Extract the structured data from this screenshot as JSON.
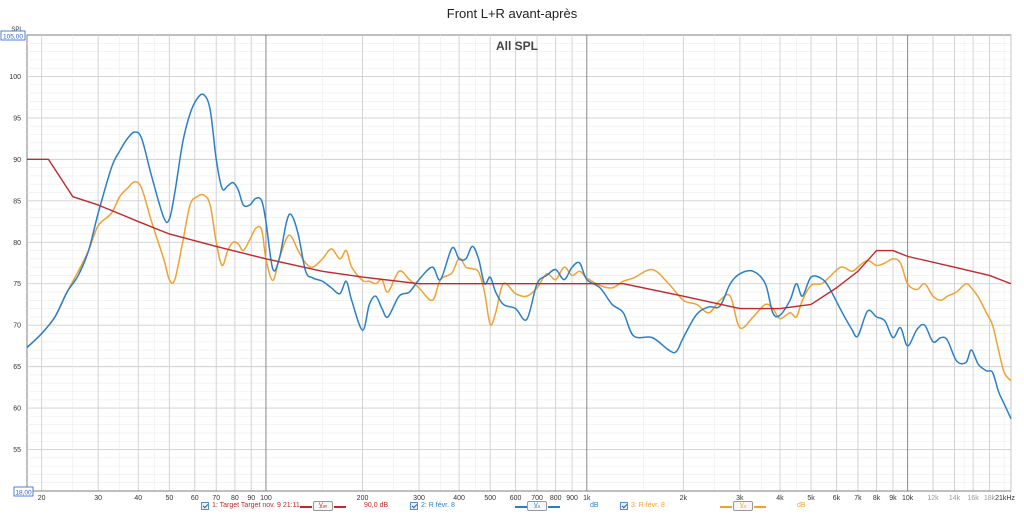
{
  "title": "Front L+R avant-après",
  "ylabel": "SPL",
  "chart_data": {
    "type": "line",
    "title": "Front L+R avant-après",
    "annotation": "All SPL",
    "ylabel": "SPL",
    "xscale": "log",
    "xlim": [
      18,
      21000
    ],
    "ylim": [
      50,
      105
    ],
    "ymin_label": "18,00",
    "ymax_label": "105,00",
    "grid": true,
    "y_ticks": [
      55,
      60,
      65,
      70,
      75,
      80,
      85,
      90,
      95,
      100
    ],
    "x_ticks": [
      {
        "v": 20,
        "label": "20",
        "major": false
      },
      {
        "v": 30,
        "label": "30",
        "major": false
      },
      {
        "v": 40,
        "label": "40",
        "major": false
      },
      {
        "v": 50,
        "label": "50",
        "major": false
      },
      {
        "v": 60,
        "label": "60",
        "major": false
      },
      {
        "v": 70,
        "label": "70",
        "major": false
      },
      {
        "v": 80,
        "label": "80",
        "major": false
      },
      {
        "v": 90,
        "label": "90",
        "major": false
      },
      {
        "v": 100,
        "label": "100",
        "major": true
      },
      {
        "v": 200,
        "label": "200",
        "major": false
      },
      {
        "v": 300,
        "label": "300",
        "major": false
      },
      {
        "v": 400,
        "label": "400",
        "major": false
      },
      {
        "v": 500,
        "label": "500",
        "major": false
      },
      {
        "v": 600,
        "label": "600",
        "major": false
      },
      {
        "v": 700,
        "label": "700",
        "major": false
      },
      {
        "v": 800,
        "label": "800",
        "major": false
      },
      {
        "v": 900,
        "label": "900",
        "major": false
      },
      {
        "v": 1000,
        "label": "1k",
        "major": true
      },
      {
        "v": 2000,
        "label": "2k",
        "major": false
      },
      {
        "v": 3000,
        "label": "3k",
        "major": false
      },
      {
        "v": 4000,
        "label": "4k",
        "major": false
      },
      {
        "v": 5000,
        "label": "5k",
        "major": false
      },
      {
        "v": 6000,
        "label": "6k",
        "major": false
      },
      {
        "v": 7000,
        "label": "7k",
        "major": false
      },
      {
        "v": 8000,
        "label": "8k",
        "major": false
      },
      {
        "v": 9000,
        "label": "9k",
        "major": false
      },
      {
        "v": 10000,
        "label": "10k",
        "major": true
      },
      {
        "v": 12000,
        "label": "12k",
        "major": false,
        "light": true
      },
      {
        "v": 14000,
        "label": "14k",
        "major": false,
        "light": true
      },
      {
        "v": 16000,
        "label": "16k",
        "major": false,
        "light": true
      },
      {
        "v": 18000,
        "label": "18k",
        "major": false,
        "light": true
      },
      {
        "v": 21000,
        "label": "21kHz",
        "major": false
      }
    ],
    "series": [
      {
        "legend": "1: Target Target nov. 9 21:11",
        "button": "V̲ₐᵥ",
        "value": "90,0 dB",
        "color": "#c0282b",
        "points": [
          [
            18,
            90
          ],
          [
            21,
            90
          ],
          [
            25,
            85.5
          ],
          [
            30,
            84.5
          ],
          [
            40,
            82.5
          ],
          [
            50,
            81
          ],
          [
            70,
            79.5
          ],
          [
            100,
            78
          ],
          [
            150,
            76.5
          ],
          [
            200,
            75.8
          ],
          [
            300,
            75
          ],
          [
            400,
            75
          ],
          [
            1000,
            75
          ],
          [
            1300,
            75
          ],
          [
            2000,
            73.5
          ],
          [
            3000,
            72
          ],
          [
            4000,
            72
          ],
          [
            5000,
            72.5
          ],
          [
            6000,
            74.5
          ],
          [
            7000,
            76.5
          ],
          [
            8000,
            79
          ],
          [
            9000,
            79
          ],
          [
            10000,
            78.3
          ],
          [
            14000,
            77
          ],
          [
            18000,
            76
          ],
          [
            21000,
            75
          ]
        ]
      },
      {
        "legend": "2: R févr. 8",
        "button": "V̲ₐ",
        "value": "dB",
        "color": "#2a7fc9",
        "points": [
          [
            18,
            67.3
          ],
          [
            20,
            69
          ],
          [
            22,
            71
          ],
          [
            24,
            74
          ],
          [
            26,
            76
          ],
          [
            28,
            79
          ],
          [
            30,
            83.5
          ],
          [
            33,
            89
          ],
          [
            35,
            91
          ],
          [
            37,
            92.5
          ],
          [
            39,
            93.3
          ],
          [
            41,
            92.5
          ],
          [
            44,
            88
          ],
          [
            48,
            83
          ],
          [
            50,
            82.8
          ],
          [
            52,
            86
          ],
          [
            55,
            92
          ],
          [
            58,
            95.5
          ],
          [
            61,
            97.3
          ],
          [
            64,
            97.8
          ],
          [
            67,
            96
          ],
          [
            70,
            90
          ],
          [
            73,
            86.5
          ],
          [
            76,
            86.8
          ],
          [
            79,
            87.2
          ],
          [
            82,
            86.3
          ],
          [
            85,
            84.5
          ],
          [
            89,
            84.5
          ],
          [
            93,
            85.3
          ],
          [
            97,
            85
          ],
          [
            100,
            82.5
          ],
          [
            105,
            76.8
          ],
          [
            110,
            78
          ],
          [
            116,
            82.5
          ],
          [
            120,
            83.3
          ],
          [
            126,
            81
          ],
          [
            133,
            76.5
          ],
          [
            140,
            75.7
          ],
          [
            150,
            75.3
          ],
          [
            160,
            74.5
          ],
          [
            170,
            73.8
          ],
          [
            178,
            75.3
          ],
          [
            185,
            73
          ],
          [
            200,
            69.4
          ],
          [
            210,
            72.5
          ],
          [
            220,
            73.5
          ],
          [
            230,
            72
          ],
          [
            240,
            71
          ],
          [
            260,
            73.5
          ],
          [
            280,
            74
          ],
          [
            300,
            75.5
          ],
          [
            330,
            77
          ],
          [
            350,
            75.5
          ],
          [
            380,
            79.3
          ],
          [
            400,
            78
          ],
          [
            420,
            78
          ],
          [
            440,
            79.5
          ],
          [
            460,
            78
          ],
          [
            480,
            75
          ],
          [
            500,
            75.8
          ],
          [
            520,
            74
          ],
          [
            550,
            72.5
          ],
          [
            600,
            72
          ],
          [
            650,
            70.7
          ],
          [
            700,
            75
          ],
          [
            750,
            76
          ],
          [
            800,
            76.7
          ],
          [
            850,
            75.5
          ],
          [
            900,
            77
          ],
          [
            950,
            77.5
          ],
          [
            1000,
            75.5
          ],
          [
            1100,
            74.5
          ],
          [
            1200,
            72.5
          ],
          [
            1300,
            71.5
          ],
          [
            1400,
            68.7
          ],
          [
            1600,
            68.5
          ],
          [
            1800,
            67
          ],
          [
            1900,
            66.8
          ],
          [
            2000,
            68.5
          ],
          [
            2200,
            71.3
          ],
          [
            2400,
            72.2
          ],
          [
            2600,
            72.3
          ],
          [
            2800,
            75
          ],
          [
            3000,
            76.2
          ],
          [
            3300,
            76.5
          ],
          [
            3600,
            75
          ],
          [
            3800,
            71.5
          ],
          [
            4000,
            71.2
          ],
          [
            4300,
            73
          ],
          [
            4500,
            75
          ],
          [
            4700,
            73.5
          ],
          [
            5000,
            75.8
          ],
          [
            5400,
            75.6
          ],
          [
            5700,
            74.5
          ],
          [
            6200,
            71.8
          ],
          [
            6700,
            69.5
          ],
          [
            7000,
            68.7
          ],
          [
            7500,
            71.7
          ],
          [
            8000,
            71
          ],
          [
            8500,
            70.5
          ],
          [
            9000,
            68.5
          ],
          [
            9500,
            69.7
          ],
          [
            10000,
            67.5
          ],
          [
            10700,
            69.5
          ],
          [
            11300,
            70
          ],
          [
            12000,
            68
          ],
          [
            12700,
            68.5
          ],
          [
            13300,
            68.2
          ],
          [
            14200,
            65.7
          ],
          [
            15200,
            65.5
          ],
          [
            15800,
            67
          ],
          [
            16600,
            65.3
          ],
          [
            17600,
            64.5
          ],
          [
            18400,
            64.3
          ],
          [
            19200,
            62
          ],
          [
            20000,
            60.5
          ],
          [
            21000,
            58.7
          ]
        ]
      },
      {
        "legend": "3: R févr. 8",
        "button": "V̲ₐ",
        "value": "dB",
        "color": "#f0a230",
        "points": [
          [
            18,
            67.3
          ],
          [
            20,
            69
          ],
          [
            22,
            71
          ],
          [
            24,
            74
          ],
          [
            26,
            76.5
          ],
          [
            28,
            79
          ],
          [
            30,
            82
          ],
          [
            33,
            83.5
          ],
          [
            35,
            85.5
          ],
          [
            37,
            86.5
          ],
          [
            39,
            87.3
          ],
          [
            41,
            86.5
          ],
          [
            44,
            82.5
          ],
          [
            48,
            78
          ],
          [
            50,
            75.5
          ],
          [
            52,
            75.5
          ],
          [
            55,
            80
          ],
          [
            58,
            84.5
          ],
          [
            61,
            85.5
          ],
          [
            64,
            85.7
          ],
          [
            67,
            84.5
          ],
          [
            70,
            80
          ],
          [
            73,
            77.2
          ],
          [
            76,
            79
          ],
          [
            79,
            80
          ],
          [
            82,
            79.8
          ],
          [
            85,
            79
          ],
          [
            89,
            80.3
          ],
          [
            93,
            81.7
          ],
          [
            97,
            81.5
          ],
          [
            100,
            78
          ],
          [
            105,
            75.4
          ],
          [
            110,
            78
          ],
          [
            116,
            80.5
          ],
          [
            120,
            80.7
          ],
          [
            126,
            79
          ],
          [
            133,
            77.5
          ],
          [
            140,
            77
          ],
          [
            150,
            78
          ],
          [
            160,
            79.2
          ],
          [
            170,
            78
          ],
          [
            178,
            79
          ],
          [
            185,
            77
          ],
          [
            200,
            75.4
          ],
          [
            210,
            75.3
          ],
          [
            220,
            75
          ],
          [
            230,
            75.5
          ],
          [
            240,
            74
          ],
          [
            260,
            76.5
          ],
          [
            280,
            75.5
          ],
          [
            300,
            74.5
          ],
          [
            330,
            73
          ],
          [
            350,
            75.5
          ],
          [
            380,
            76.3
          ],
          [
            400,
            78.1
          ],
          [
            420,
            77
          ],
          [
            440,
            76.8
          ],
          [
            460,
            76.4
          ],
          [
            480,
            74
          ],
          [
            500,
            70.1
          ],
          [
            520,
            71.5
          ],
          [
            550,
            75
          ],
          [
            600,
            73.8
          ],
          [
            650,
            73.5
          ],
          [
            700,
            74.5
          ],
          [
            750,
            76.2
          ],
          [
            800,
            75.5
          ],
          [
            850,
            77
          ],
          [
            900,
            76
          ],
          [
            950,
            76.5
          ],
          [
            1000,
            75.7
          ],
          [
            1100,
            74.8
          ],
          [
            1200,
            74.5
          ],
          [
            1300,
            75.3
          ],
          [
            1400,
            75.7
          ],
          [
            1600,
            76.7
          ],
          [
            1800,
            75
          ],
          [
            2000,
            73
          ],
          [
            2200,
            72.5
          ],
          [
            2400,
            71.5
          ],
          [
            2600,
            73
          ],
          [
            2800,
            73.5
          ],
          [
            3000,
            69.7
          ],
          [
            3300,
            71
          ],
          [
            3600,
            72.5
          ],
          [
            3800,
            72
          ],
          [
            4000,
            70.8
          ],
          [
            4300,
            71.5
          ],
          [
            4500,
            71
          ],
          [
            4700,
            73
          ],
          [
            5000,
            74.8
          ],
          [
            5400,
            75
          ],
          [
            5700,
            75.8
          ],
          [
            6200,
            77
          ],
          [
            6700,
            76.5
          ],
          [
            7000,
            77
          ],
          [
            7500,
            77.8
          ],
          [
            8000,
            77.2
          ],
          [
            8500,
            77.5
          ],
          [
            9000,
            78
          ],
          [
            9500,
            77.5
          ],
          [
            10000,
            75
          ],
          [
            10700,
            74.3
          ],
          [
            11300,
            75
          ],
          [
            12000,
            73.5
          ],
          [
            12700,
            73
          ],
          [
            13300,
            73.5
          ],
          [
            14200,
            74
          ],
          [
            15200,
            75
          ],
          [
            15800,
            74.5
          ],
          [
            16600,
            73.4
          ],
          [
            17600,
            71.5
          ],
          [
            18400,
            70
          ],
          [
            19200,
            67
          ],
          [
            20000,
            64.3
          ],
          [
            21000,
            63.3
          ]
        ]
      }
    ]
  }
}
